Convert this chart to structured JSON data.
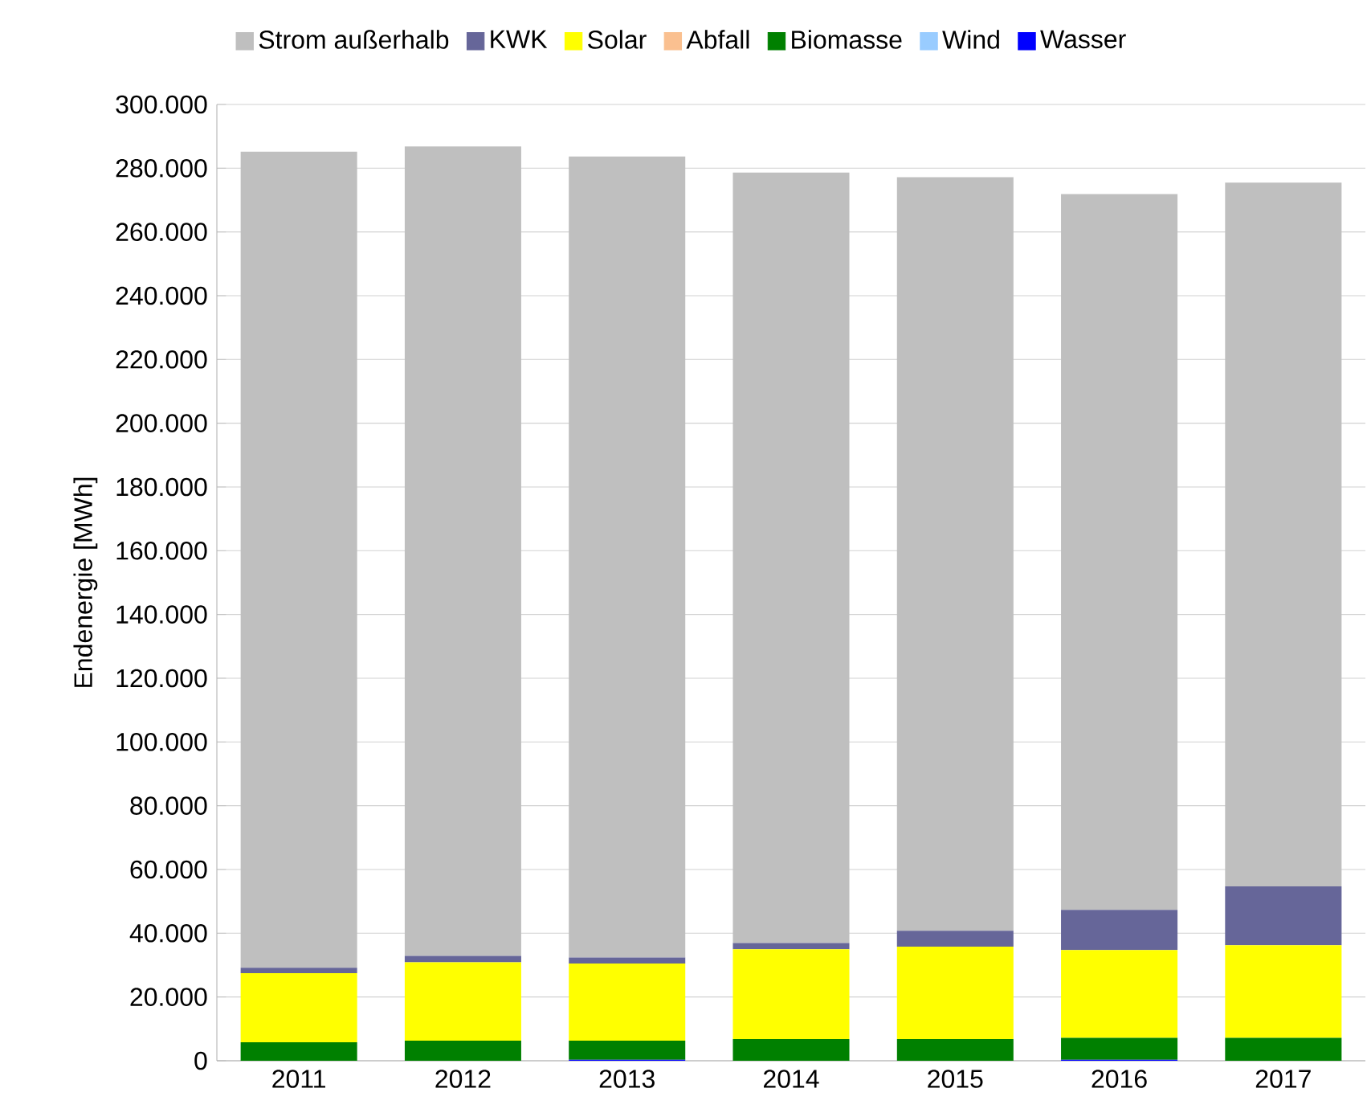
{
  "chart_data": {
    "type": "bar",
    "stacked": true,
    "ylabel": "Endenergie [MWh]",
    "categories": [
      "2011",
      "2012",
      "2013",
      "2014",
      "2015",
      "2016",
      "2017"
    ],
    "series": [
      {
        "name": "Wasser",
        "color": "#0000ff",
        "values": [
          null,
          null,
          300,
          null,
          null,
          300,
          null
        ]
      },
      {
        "name": "Wind",
        "color": "#99ccff",
        "values": [
          null,
          null,
          null,
          null,
          null,
          null,
          null
        ]
      },
      {
        "name": "Biomasse",
        "color": "#008000",
        "values": [
          5800,
          6300,
          6000,
          6800,
          6800,
          6900,
          7200
        ]
      },
      {
        "name": "Abfall",
        "color": "#fac090",
        "values": [
          null,
          null,
          null,
          null,
          null,
          null,
          null
        ]
      },
      {
        "name": "Solar",
        "color": "#ffff00",
        "values": [
          21700,
          24600,
          24200,
          28200,
          29000,
          27500,
          29000
        ]
      },
      {
        "name": "KWK",
        "color": "#666699",
        "values": [
          1700,
          2000,
          1900,
          1900,
          5000,
          12600,
          18500
        ]
      },
      {
        "name": "Strom außerhalb",
        "color": "#bfbfbf",
        "values": [
          256000,
          253900,
          251300,
          241700,
          236400,
          224600,
          220800
        ]
      }
    ],
    "ylim": [
      0,
      300000
    ],
    "yticks": [
      {
        "value": 0,
        "label": "0"
      },
      {
        "value": 20000,
        "label": "20.000"
      },
      {
        "value": 40000,
        "label": "40.000"
      },
      {
        "value": 60000,
        "label": "60.000"
      },
      {
        "value": 80000,
        "label": "80.000"
      },
      {
        "value": 100000,
        "label": "100.000"
      },
      {
        "value": 120000,
        "label": "120.000"
      },
      {
        "value": 140000,
        "label": "140.000"
      },
      {
        "value": 160000,
        "label": "160.000"
      },
      {
        "value": 180000,
        "label": "180.000"
      },
      {
        "value": 200000,
        "label": "200.000"
      },
      {
        "value": 220000,
        "label": "220.000"
      },
      {
        "value": 240000,
        "label": "240.000"
      },
      {
        "value": 260000,
        "label": "260.000"
      },
      {
        "value": 280000,
        "label": "280.000"
      },
      {
        "value": 300000,
        "label": "300.000"
      }
    ],
    "grid": "y",
    "legend": "top"
  }
}
